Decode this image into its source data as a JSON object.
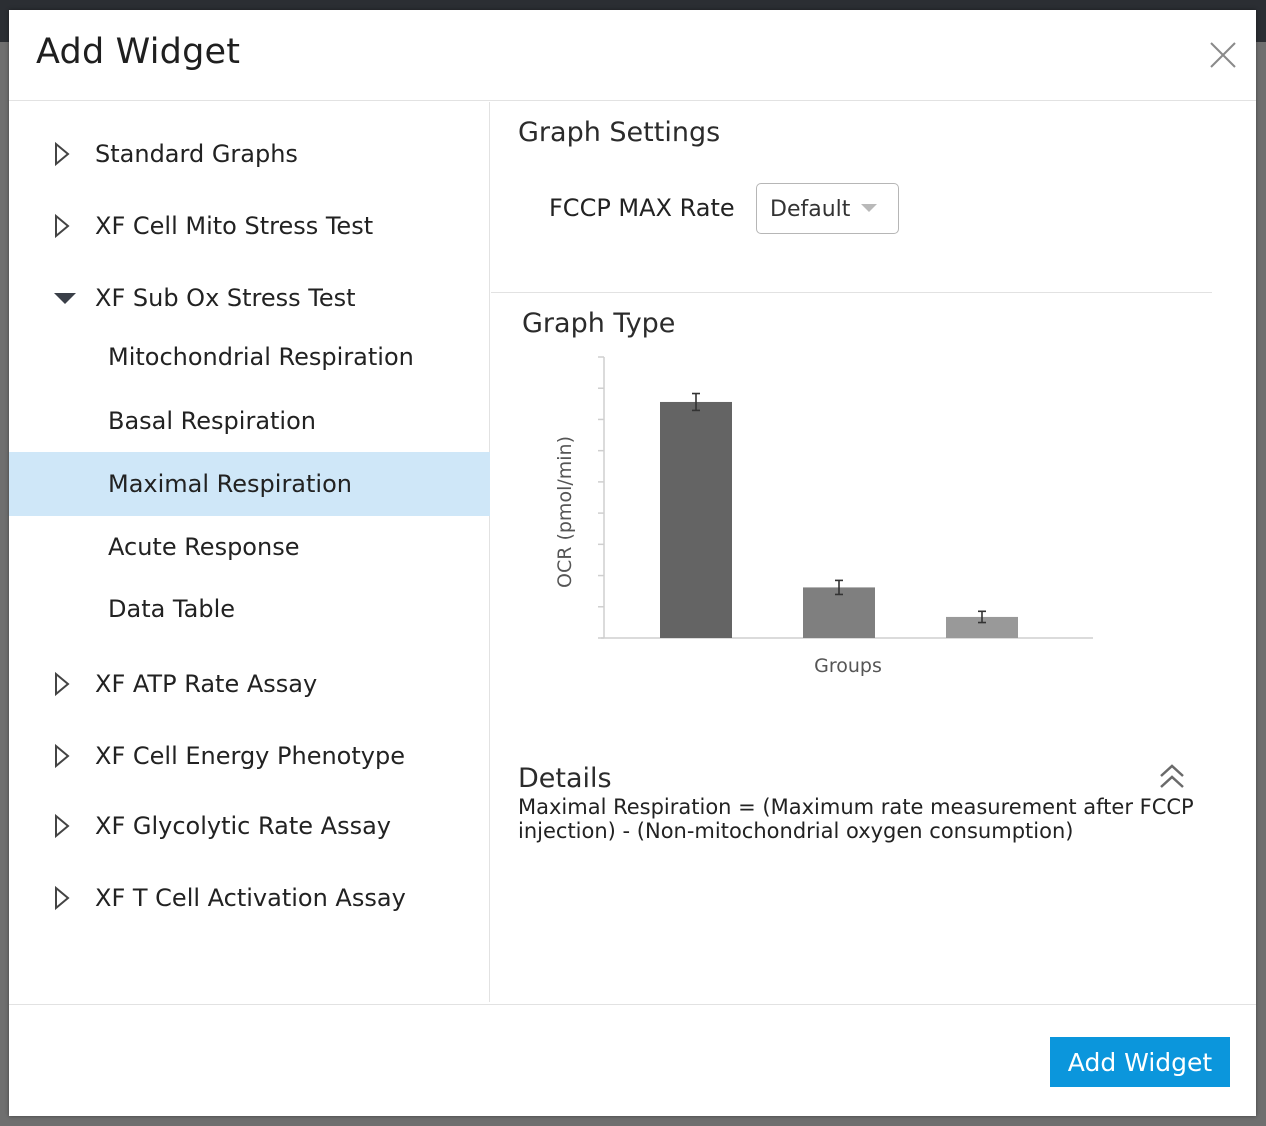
{
  "modal": {
    "title": "Add Widget",
    "close_icon": "close-icon"
  },
  "tree": {
    "items": [
      {
        "label": "Standard Graphs",
        "level": 0,
        "expanded": false
      },
      {
        "label": "XF Cell Mito Stress Test",
        "level": 0,
        "expanded": false
      },
      {
        "label": "XF Sub Ox Stress Test",
        "level": 0,
        "expanded": true
      },
      {
        "label": "Mitochondrial Respiration",
        "level": 1
      },
      {
        "label": "Basal Respiration",
        "level": 1
      },
      {
        "label": "Maximal Respiration",
        "level": 1,
        "selected": true
      },
      {
        "label": "Acute Response",
        "level": 1
      },
      {
        "label": "Data Table",
        "level": 1
      },
      {
        "label": "XF ATP Rate Assay",
        "level": 0,
        "expanded": false
      },
      {
        "label": "XF Cell Energy Phenotype",
        "level": 0,
        "expanded": false
      },
      {
        "label": "XF Glycolytic Rate Assay",
        "level": 0,
        "expanded": false
      },
      {
        "label": "XF T Cell Activation Assay",
        "level": 0,
        "expanded": false
      }
    ]
  },
  "settings": {
    "title": "Graph Settings",
    "fccp_label": "FCCP MAX Rate",
    "fccp_value": "Default"
  },
  "graph": {
    "title": "Graph Type"
  },
  "chart_data": {
    "type": "bar",
    "title": "",
    "xlabel": "Groups",
    "ylabel": "OCR (pmol/min)",
    "categories": [
      "",
      "",
      ""
    ],
    "values": [
      84,
      18,
      7.5
    ],
    "errors": [
      3,
      2.5,
      2
    ],
    "ylim": [
      0,
      100
    ],
    "y_tick_count": 9,
    "grid": false,
    "tick_labels_shown": false,
    "bar_colors": [
      "#646464",
      "#7f7f7f",
      "#999999"
    ]
  },
  "details": {
    "title": "Details",
    "text": "Maximal Respiration = (Maximum rate measurement after FCCP injection) - (Non-mitochondrial oxygen consumption)",
    "collapse_icon": "double-chevron-up-icon"
  },
  "footer": {
    "add_label": "Add Widget"
  },
  "colors": {
    "accent": "#0b96dc",
    "selected_row": "#cfe7f8"
  }
}
